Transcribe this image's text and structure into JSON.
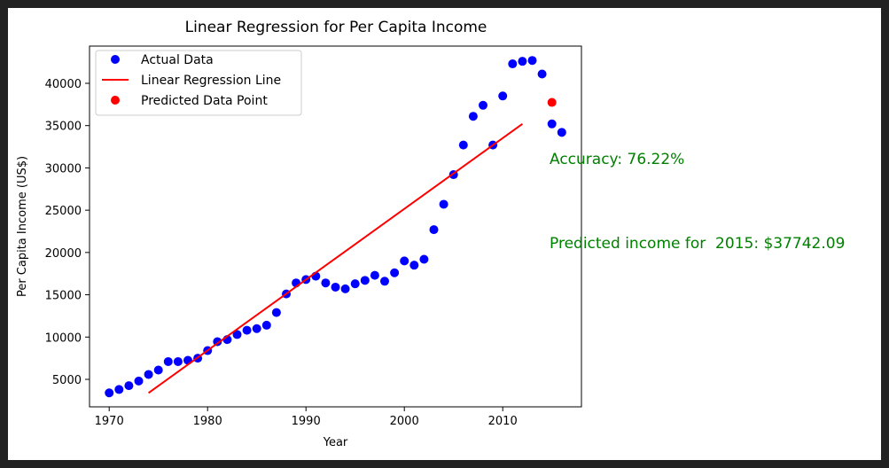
{
  "chart_data": {
    "type": "scatter",
    "title": "Linear Regression for Per Capita Income",
    "xlabel": "Year",
    "ylabel": "Per Capita Income (US$)",
    "xlim": [
      1968,
      2018
    ],
    "ylim": [
      1750,
      44400
    ],
    "xticks": [
      1970,
      1980,
      1990,
      2000,
      2010
    ],
    "yticks": [
      5000,
      10000,
      15000,
      20000,
      25000,
      30000,
      35000,
      40000
    ],
    "grid": false,
    "legend_position": "top-left",
    "series": [
      {
        "name": "Actual Data",
        "kind": "scatter",
        "color": "#0000ff",
        "x": [
          1970,
          1971,
          1972,
          1973,
          1974,
          1975,
          1976,
          1977,
          1978,
          1979,
          1980,
          1981,
          1982,
          1983,
          1984,
          1985,
          1986,
          1987,
          1988,
          1989,
          1990,
          1991,
          1992,
          1993,
          1994,
          1995,
          1996,
          1997,
          1998,
          1999,
          2000,
          2001,
          2002,
          2003,
          2004,
          2005,
          2006,
          2007,
          2008,
          2009,
          2010,
          2011,
          2012,
          2013,
          2014,
          2015,
          2016
        ],
        "y": [
          3400,
          3800,
          4250,
          4800,
          5580,
          6100,
          7100,
          7100,
          7250,
          7500,
          8400,
          9450,
          9700,
          10300,
          10800,
          11000,
          11400,
          12900,
          15100,
          16400,
          16800,
          17200,
          16400,
          15900,
          15700,
          16300,
          16700,
          17300,
          16600,
          17600,
          19000,
          18500,
          19200,
          22700,
          25700,
          29200,
          32700,
          36100,
          37400,
          32700,
          38500,
          42300,
          42600,
          42700,
          41100,
          35200,
          34200
        ]
      },
      {
        "name": "Linear Regression Line",
        "kind": "line",
        "color": "#ff0000",
        "x": [
          1974,
          2012
        ],
        "y": [
          3400,
          35200
        ]
      },
      {
        "name": "Predicted Data Point",
        "kind": "scatter",
        "color": "#ff0000",
        "x": [
          2015
        ],
        "y": [
          37742.09
        ]
      }
    ],
    "annotations": [
      {
        "text": "Accuracy: 76.22%",
        "color": "#008000"
      },
      {
        "text": "Predicted income for  2015: $37742.09",
        "color": "#008000"
      }
    ]
  }
}
